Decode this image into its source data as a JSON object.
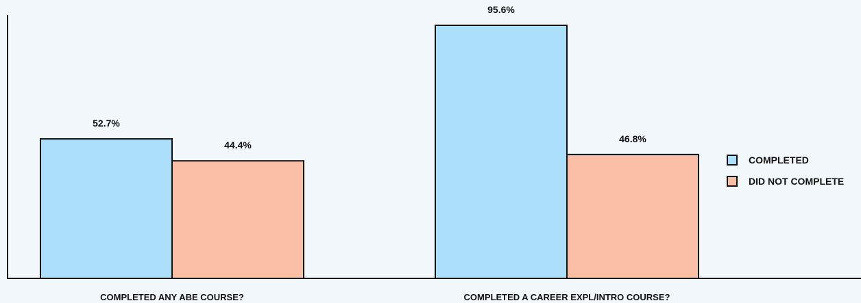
{
  "chart_data": {
    "type": "bar",
    "categories": [
      "COMPLETED ANY ABE COURSE?",
      "COMPLETED A CAREER EXPL/INTRO COURSE?"
    ],
    "series": [
      {
        "name": "COMPLETED",
        "values": [
          52.7,
          95.6
        ],
        "labels": [
          "52.7%",
          "95.6%"
        ],
        "color": "#abdff9"
      },
      {
        "name": "DID NOT COMPLETE",
        "values": [
          44.4,
          46.8
        ],
        "labels": [
          "44.4%",
          "46.8%"
        ],
        "color": "#fbbfa7"
      }
    ],
    "ylim": [
      0,
      100
    ],
    "grid": false,
    "legend": "right"
  }
}
